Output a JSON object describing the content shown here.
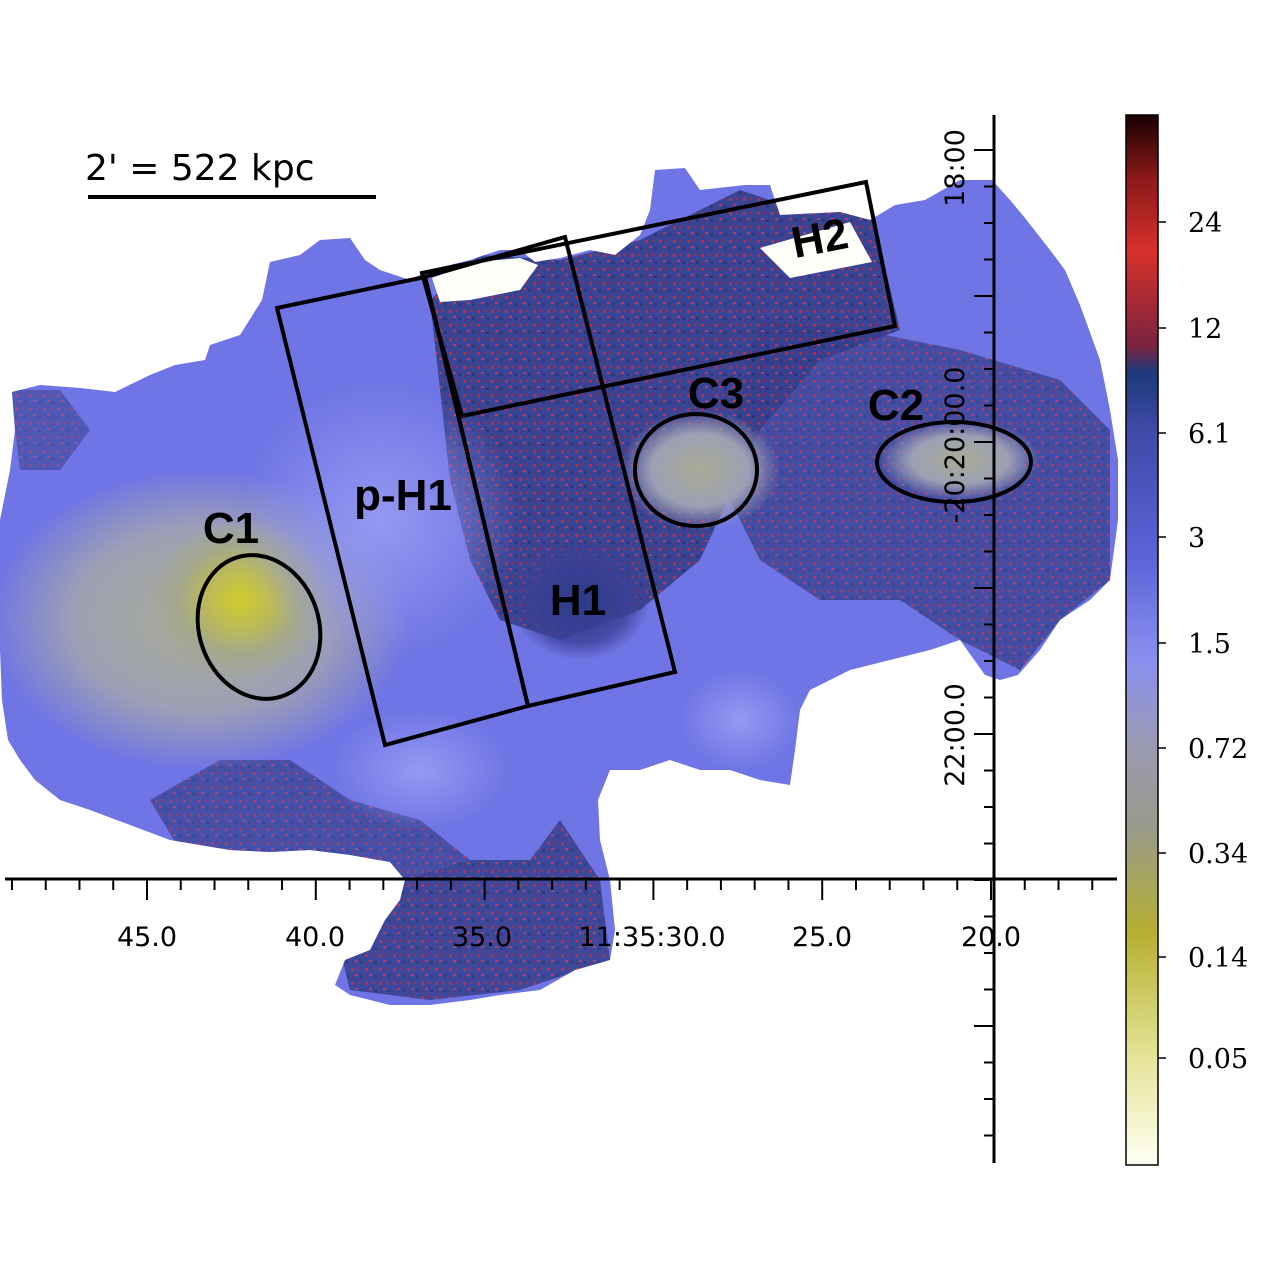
{
  "scale_bar": {
    "label": "2' = 522 kpc"
  },
  "regions": [
    {
      "id": "C1",
      "label": "C1"
    },
    {
      "id": "p-H1",
      "label": "p-H1"
    },
    {
      "id": "H1",
      "label": "H1"
    },
    {
      "id": "H2",
      "label": "H2"
    },
    {
      "id": "C3",
      "label": "C3"
    },
    {
      "id": "C2",
      "label": "C2"
    }
  ],
  "ra_axis": {
    "tick_labels": [
      "45.0",
      "40.0",
      "35.0",
      "11:35:30.0",
      "25.0",
      "20.0"
    ]
  },
  "dec_axis": {
    "tick_labels": [
      "18:00",
      "-20:20:00.0",
      "22:00.0"
    ]
  },
  "colorbar": {
    "tick_labels": [
      "24",
      "12",
      "6.1",
      "3",
      "1.5",
      "0.72",
      "0.34",
      "0.14",
      "0.05"
    ],
    "colors": {
      "top": "#1a0000",
      "dark_red": "#8b1a1a",
      "red": "#d8302c",
      "navy": "#1e3a7a",
      "blue": "#5b63d6",
      "light_blue": "#8a90f0",
      "gray": "#9a9a9a",
      "olive": "#b5b030",
      "pale": "#fffff4"
    }
  },
  "map_colors": {
    "base": "#6f75e4",
    "light": "#8a90f0",
    "dark": "#3b3f9e",
    "navy": "#2a3680",
    "red": "#c0283a",
    "gray_green": "#9ea494",
    "yellow": "#c9c73a"
  }
}
